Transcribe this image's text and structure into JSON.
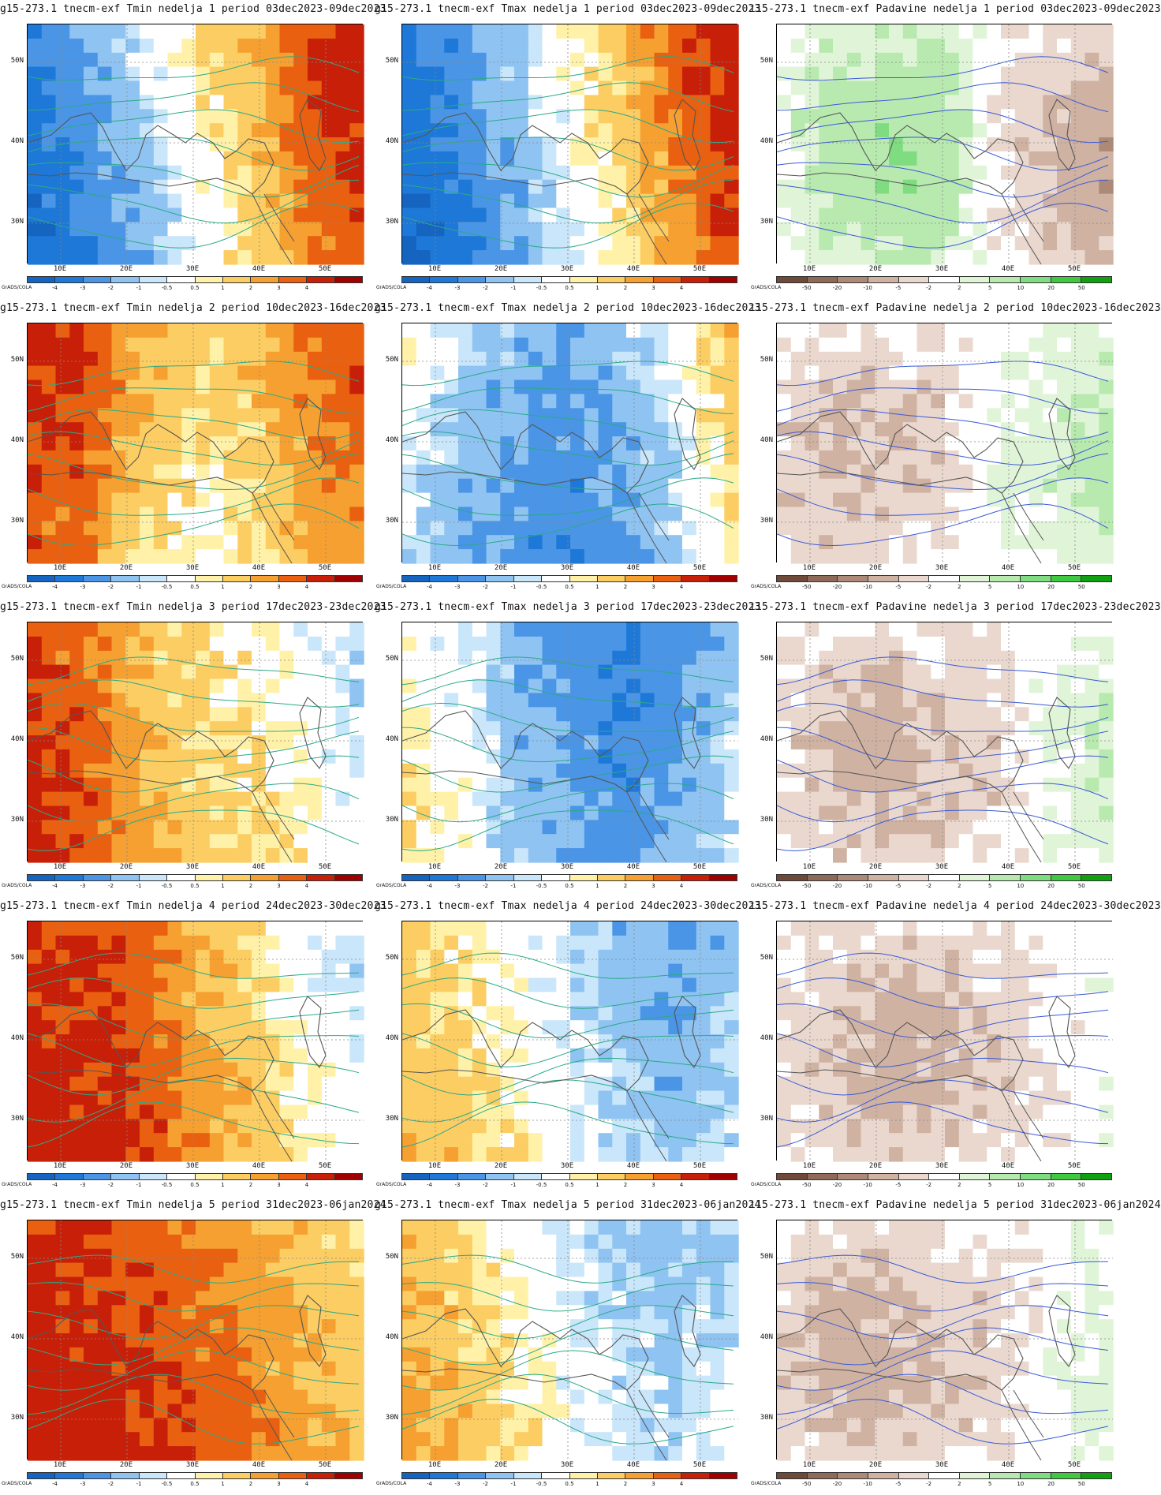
{
  "titles": [
    [
      "g15-273.1 tnecm-exf Tmin nedelja 1 period 03dec2023-09dec2023",
      "g15-273.1 tnecm-exf Tmax nedelja 1 period 03dec2023-09dec2023",
      "ı15-273.1 tnecm-exf Padavine nedelja 1 period 03dec2023-09dec2023"
    ],
    [
      "g15-273.1 tnecm-exf Tmin nedelja 2 period 10dec2023-16dec2023",
      "g15-273.1 tnecm-exf Tmax nedelja 2 period 10dec2023-16dec2023",
      "ı15-273.1 tnecm-exf Padavine nedelja 2 period 10dec2023-16dec2023"
    ],
    [
      "g15-273.1 tnecm-exf Tmin nedelja 3 period 17dec2023-23dec2023",
      "g15-273.1 tnecm-exf Tmax nedelja 3 period 17dec2023-23dec2023",
      "ı15-273.1 tnecm-exf Padavine nedelja 3 period 17dec2023-23dec2023"
    ],
    [
      "g15-273.1 tnecm-exf Tmin nedelja 4 period 24dec2023-30dec2023",
      "g15-273.1 tnecm-exf Tmax nedelja 4 period 24dec2023-30dec2023",
      "ı15-273.1 tnecm-exf Padavine nedelja 4 period 24dec2023-30dec2023"
    ],
    [
      "g15-273.1 tnecm-exf Tmin nedelja 5 period 31dec2023-06jan2024",
      "g15-273.1 tnecm-exf Tmax nedelja 5 period 31dec2023-06jan2024",
      "ı15-273.1 tnecm-exf Padavine nedelja 5 period 31dec2023-06jan2024"
    ]
  ],
  "lat_labels": [
    "50N",
    "40N",
    "30N"
  ],
  "lon_labels": [
    "10E",
    "20E",
    "30E",
    "40E",
    "50E"
  ],
  "brand": "GrADS/COLA",
  "temp_ticks": [
    "-4",
    "-3",
    "-2",
    "-1",
    "-0.5",
    "0.5",
    "1",
    "2",
    "3",
    "4"
  ],
  "precip_ticks": [
    "-50",
    "-20",
    "-10",
    "-5",
    "-2",
    "2",
    "5",
    "10",
    "20",
    "50"
  ],
  "temp_colors": [
    "#1565c0",
    "#1e78d7",
    "#4a95e6",
    "#8fc3f2",
    "#c9e6fa",
    "#ffffff",
    "#fff2a8",
    "#fccd62",
    "#f5a030",
    "#e86010",
    "#c82008",
    "#a00000"
  ],
  "precip_colors": [
    "#6e4a3a",
    "#8e6a58",
    "#ad8a78",
    "#cfb2a2",
    "#ead8ce",
    "#ffffff",
    "#e0f5d8",
    "#b8eab0",
    "#80dc80",
    "#40c840",
    "#10a010"
  ],
  "anomaly_shades": [
    [
      [
        -3.5,
        -2.5,
        -1.2,
        0.2,
        1.5,
        3.2,
        4.2
      ],
      [
        -3.8,
        -2.8,
        -1.5,
        0,
        1.2,
        3,
        4.3
      ],
      [
        2,
        6,
        8,
        7,
        -2,
        -5,
        -8
      ]
    ],
    [
      [
        4,
        3.5,
        1.5,
        0.8,
        1.2,
        2.5,
        3.2
      ],
      [
        -0.2,
        -1.5,
        -2,
        -2.5,
        -1.8,
        -0.5,
        1.2
      ],
      [
        -3,
        -5,
        -4,
        -3,
        2,
        3,
        6
      ]
    ],
    [
      [
        4.2,
        3.5,
        2,
        1.2,
        0.8,
        0.3,
        -0.5
      ],
      [
        0.6,
        0,
        -1.5,
        -2.2,
        -2.8,
        -2,
        -1
      ],
      [
        -2,
        -5,
        -6,
        -4,
        -3,
        2,
        4
      ]
    ],
    [
      [
        4.5,
        4.2,
        3.8,
        2.5,
        1.5,
        0.2,
        -0.3
      ],
      [
        1.5,
        1.2,
        0.4,
        -0.5,
        -1.2,
        -1.8,
        -1
      ],
      [
        -2,
        -4,
        -6,
        -5,
        -3,
        -2,
        1
      ]
    ],
    [
      [
        4.6,
        4.4,
        4,
        3.5,
        2.8,
        2,
        1.5
      ],
      [
        2.2,
        1.5,
        0.6,
        -0.2,
        -0.8,
        -1,
        -0.6
      ],
      [
        -3,
        -6,
        -5,
        -4,
        -3,
        1,
        3
      ]
    ]
  ]
}
